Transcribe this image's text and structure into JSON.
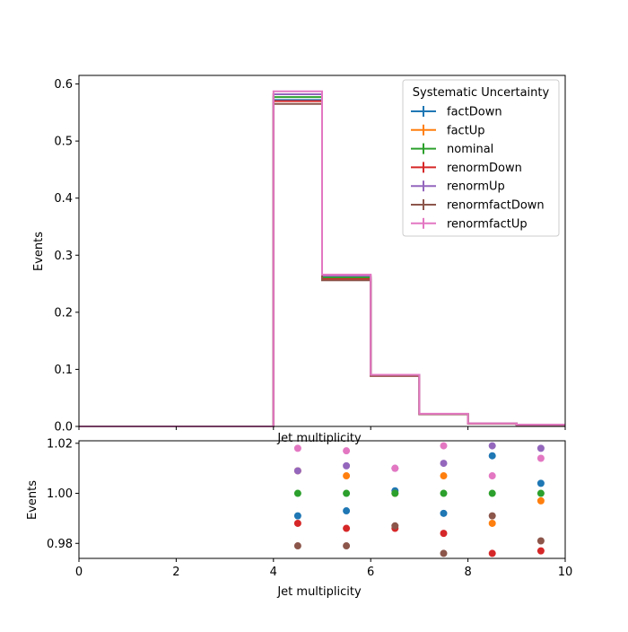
{
  "chart_data": [
    {
      "type": "step",
      "panel": "main",
      "xlabel": "Jet multiplicity",
      "ylabel": "Events",
      "xlim": [
        0,
        10
      ],
      "ylim": [
        0,
        0.615
      ],
      "x_ticks": [
        0,
        2,
        4,
        6,
        8,
        10
      ],
      "y_ticks": [
        0.0,
        0.1,
        0.2,
        0.3,
        0.4,
        0.5,
        0.6
      ],
      "y_tick_labels": [
        "0.0",
        "0.1",
        "0.2",
        "0.3",
        "0.4",
        "0.5",
        "0.6"
      ],
      "bin_edges": [
        0,
        1,
        2,
        3,
        4,
        5,
        6,
        7,
        8,
        9,
        10
      ],
      "legend": {
        "title": "Systematic Uncertainty",
        "placement": "top-right"
      },
      "series": [
        {
          "name": "factDown",
          "color": "#1f77b4",
          "values": [
            0,
            0,
            0,
            0,
            0.572,
            0.259,
            0.0905,
            0.0215,
            0.0055,
            0.003
          ]
        },
        {
          "name": "factUp",
          "color": "#ff7f0e",
          "values": [
            0,
            0,
            0,
            0,
            0.582,
            0.263,
            0.0895,
            0.022,
            0.0052,
            0.0029
          ]
        },
        {
          "name": "nominal",
          "color": "#2ca02c",
          "values": [
            0,
            0,
            0,
            0,
            0.577,
            0.261,
            0.0895,
            0.0218,
            0.0053,
            0.0029
          ]
        },
        {
          "name": "renormDown",
          "color": "#d62728",
          "values": [
            0,
            0,
            0,
            0,
            0.57,
            0.258,
            0.0885,
            0.0214,
            0.0052,
            0.0028
          ]
        },
        {
          "name": "renormUp",
          "color": "#9467bd",
          "values": [
            0,
            0,
            0,
            0,
            0.582,
            0.264,
            0.0905,
            0.0221,
            0.0054,
            0.003
          ]
        },
        {
          "name": "renormfactDown",
          "color": "#8c564b",
          "values": [
            0,
            0,
            0,
            0,
            0.565,
            0.256,
            0.0885,
            0.0213,
            0.0052,
            0.0028
          ]
        },
        {
          "name": "renormfactUp",
          "color": "#e377c2",
          "values": [
            0,
            0,
            0,
            0,
            0.587,
            0.266,
            0.0905,
            0.0222,
            0.0054,
            0.003
          ]
        }
      ]
    },
    {
      "type": "scatter",
      "panel": "ratio",
      "xlabel": "Jet multiplicity",
      "ylabel": "Events",
      "xlim": [
        0,
        10
      ],
      "ylim": [
        0.974,
        1.021
      ],
      "x_ticks": [
        0,
        2,
        4,
        6,
        8,
        10
      ],
      "y_ticks": [
        0.98,
        1.0,
        1.02
      ],
      "y_tick_labels": [
        "0.98",
        "1.00",
        "1.02"
      ],
      "x": [
        4.5,
        5.5,
        6.5,
        7.5,
        8.5,
        9.5
      ],
      "series": [
        {
          "name": "factDown",
          "color": "#1f77b4",
          "values": [
            0.991,
            0.993,
            1.001,
            0.992,
            1.015,
            1.004
          ]
        },
        {
          "name": "factUp",
          "color": "#ff7f0e",
          "values": [
            1.009,
            1.007,
            1.0,
            1.007,
            0.988,
            0.997
          ]
        },
        {
          "name": "nominal",
          "color": "#2ca02c",
          "values": [
            1.0,
            1.0,
            1.0,
            1.0,
            1.0,
            1.0
          ]
        },
        {
          "name": "renormDown",
          "color": "#d62728",
          "values": [
            0.988,
            0.986,
            0.986,
            0.984,
            0.976,
            0.977
          ]
        },
        {
          "name": "renormUp",
          "color": "#9467bd",
          "values": [
            1.009,
            1.011,
            1.01,
            1.012,
            1.019,
            1.018
          ]
        },
        {
          "name": "renormfactDown",
          "color": "#8c564b",
          "values": [
            0.979,
            0.979,
            0.987,
            0.976,
            0.991,
            0.981
          ]
        },
        {
          "name": "renormfactUp",
          "color": "#e377c2",
          "values": [
            1.018,
            1.017,
            1.01,
            1.019,
            1.007,
            1.014
          ]
        }
      ]
    }
  ]
}
